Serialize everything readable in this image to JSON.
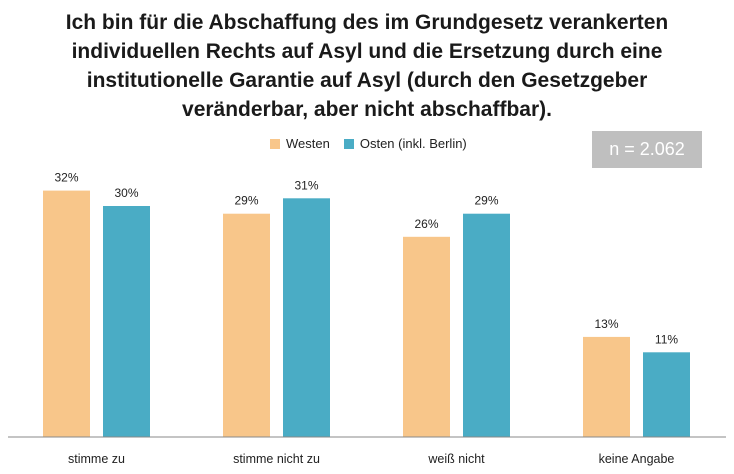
{
  "chart_data": {
    "type": "bar",
    "title_lines": [
      "Ich bin für die Abschaffung des im Grundgesetz verankerten",
      "individuellen Rechts auf Asyl und die Ersetzung durch eine",
      "institutionelle Garantie auf Asyl (durch den Gesetzgeber",
      "veränderbar, aber nicht abschaffbar)."
    ],
    "categories": [
      "stimme zu",
      "stimme nicht zu",
      "weiß nicht",
      "keine Angabe"
    ],
    "series": [
      {
        "name": "Westen",
        "color": "#f8c68a",
        "values": [
          32,
          29,
          26,
          13
        ],
        "labels": [
          "32%",
          "29%",
          "26%",
          "13%"
        ]
      },
      {
        "name": "Osten (inkl. Berlin)",
        "color": "#4aacc5",
        "values": [
          30,
          31,
          29,
          11
        ],
        "labels": [
          "30%",
          "31%",
          "29%",
          "11%"
        ]
      }
    ],
    "sample_note": "n = 2.062",
    "grid": false,
    "legend_position": "top-center"
  }
}
